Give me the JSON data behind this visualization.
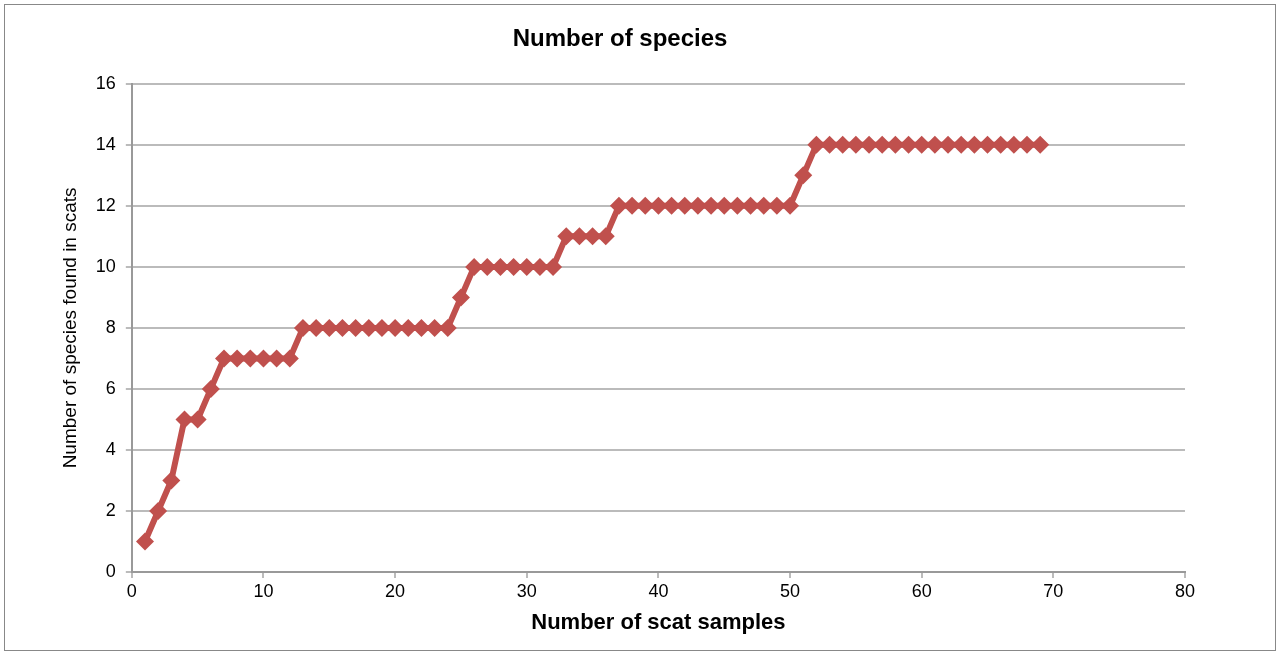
{
  "chart_data": {
    "type": "line",
    "title": "Number of species",
    "xlabel": "Number of scat samples",
    "ylabel": "Number of species found in scats",
    "x": [
      1,
      2,
      3,
      4,
      5,
      6,
      7,
      8,
      9,
      10,
      11,
      12,
      13,
      14,
      15,
      16,
      17,
      18,
      19,
      20,
      21,
      22,
      23,
      24,
      25,
      26,
      27,
      28,
      29,
      30,
      31,
      32,
      33,
      34,
      35,
      36,
      37,
      38,
      39,
      40,
      41,
      42,
      43,
      44,
      45,
      46,
      47,
      48,
      49,
      50,
      51,
      52,
      53,
      54,
      55,
      56,
      57,
      58,
      59,
      60,
      61,
      62,
      63,
      64,
      65,
      66,
      67,
      68,
      69
    ],
    "series": [
      {
        "color": "#c0504d",
        "values": [
          1,
          2,
          3,
          5,
          5,
          6,
          7,
          7,
          7,
          7,
          7,
          7,
          8,
          8,
          8,
          8,
          8,
          8,
          8,
          8,
          8,
          8,
          8,
          8,
          9,
          10,
          10,
          10,
          10,
          10,
          10,
          10,
          11,
          11,
          11,
          11,
          12,
          12,
          12,
          12,
          12,
          12,
          12,
          12,
          12,
          12,
          12,
          12,
          12,
          12,
          13,
          14,
          14,
          14,
          14,
          14,
          14,
          14,
          14,
          14,
          14,
          14,
          14,
          14,
          14,
          14,
          14,
          14,
          14
        ]
      }
    ],
    "xlim": [
      0,
      80
    ],
    "xticks": [
      0,
      10,
      20,
      30,
      40,
      50,
      60,
      70,
      80
    ],
    "ylim": [
      0,
      16
    ],
    "yticks": [
      0,
      2,
      4,
      6,
      8,
      10,
      12,
      14,
      16
    ],
    "grid": "y",
    "legend": false,
    "marker": "diamond",
    "line_style": "solid"
  }
}
